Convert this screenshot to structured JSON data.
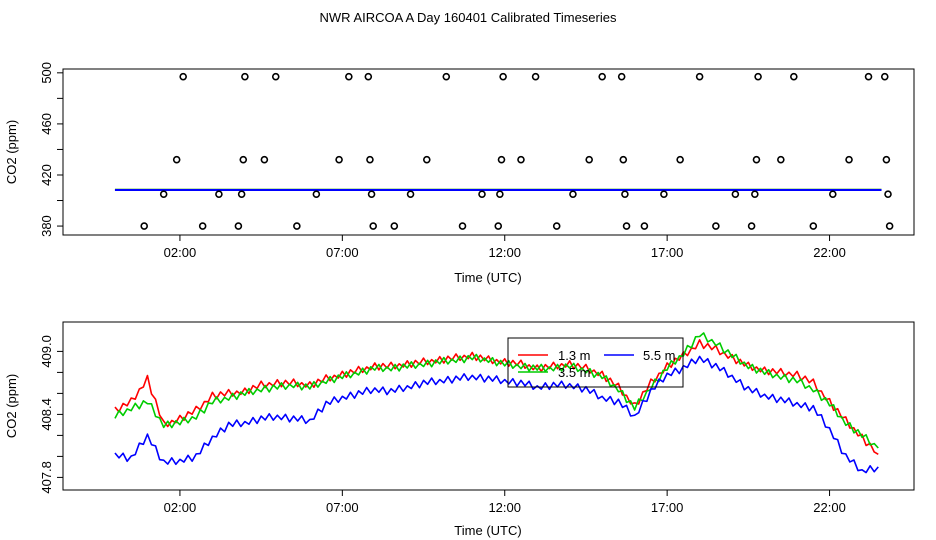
{
  "title": "NWR AIRCOA A  Day 160401  Calibrated Timeseries",
  "chart_data": [
    {
      "type": "scatter",
      "xlabel": "Time (UTC)",
      "ylabel": "CO2 (ppm)",
      "xlim": [
        -1.6,
        24.6
      ],
      "ylim": [
        373,
        503
      ],
      "xticks": [
        2,
        7,
        12,
        17,
        22
      ],
      "xtick_labels": [
        "02:00",
        "07:00",
        "12:00",
        "17:00",
        "22:00"
      ],
      "yticks": [
        380,
        420,
        460,
        500
      ],
      "ytick_labels": [
        "380",
        "420",
        "460",
        "500"
      ],
      "points": {
        "x": [
          0.9,
          1.5,
          1.9,
          2.1,
          2.7,
          3.2,
          3.8,
          3.9,
          3.95,
          4.0,
          4.6,
          4.95,
          5.6,
          6.2,
          6.9,
          7.2,
          7.8,
          7.85,
          7.9,
          7.95,
          8.6,
          9.1,
          9.6,
          10.2,
          10.7,
          11.3,
          11.8,
          11.85,
          11.9,
          11.95,
          12.5,
          12.95,
          13.6,
          14.1,
          14.6,
          15.0,
          15.6,
          15.65,
          15.7,
          15.75,
          16.3,
          16.9,
          17.4,
          18.0,
          18.5,
          19.1,
          19.6,
          19.7,
          19.75,
          19.8,
          20.5,
          20.9,
          21.5,
          22.1,
          22.6,
          23.2,
          23.7,
          23.75,
          23.8,
          23.85
        ],
        "y": [
          380,
          405,
          432,
          497,
          380,
          405,
          380,
          405,
          432,
          497,
          432,
          497,
          380,
          405,
          432,
          497,
          497,
          432,
          405,
          380,
          380,
          405,
          432,
          497,
          380,
          405,
          380,
          405,
          432,
          497,
          432,
          497,
          380,
          405,
          432,
          497,
          497,
          432,
          405,
          380,
          380,
          405,
          432,
          497,
          380,
          405,
          380,
          405,
          432,
          497,
          432,
          497,
          380,
          405,
          432,
          497,
          497,
          432,
          405,
          380
        ]
      },
      "series": [
        {
          "name": "1.3 m",
          "color": "#ff0000",
          "x": [
            0,
            23.6
          ],
          "y": [
            408.3,
            408.3
          ]
        },
        {
          "name": "3.5 m",
          "color": "#00cc00",
          "x": [
            0,
            23.6
          ],
          "y": [
            408.4,
            408.4
          ]
        },
        {
          "name": "5.5 m",
          "color": "#0000ff",
          "x": [
            0,
            23.6
          ],
          "y": [
            408.2,
            408.2
          ]
        }
      ]
    },
    {
      "type": "line",
      "xlabel": "Time (UTC)",
      "ylabel": "CO2 (ppm)",
      "xlim": [
        -1.6,
        24.6
      ],
      "ylim": [
        407.68,
        409.28
      ],
      "xticks": [
        2,
        7,
        12,
        17,
        22
      ],
      "xtick_labels": [
        "02:00",
        "07:00",
        "12:00",
        "17:00",
        "22:00"
      ],
      "yticks": [
        407.8,
        408.4,
        409.0
      ],
      "ytick_labels": [
        "407.8",
        "408.4",
        "409.0"
      ],
      "legend": {
        "placement": "top-center",
        "entries": [
          "1.3 m",
          "3.5 m",
          "5.5 m"
        ]
      },
      "series": [
        {
          "name": "1.3 m",
          "color": "#ff0000",
          "x": [
            0.0,
            0.5,
            1.0,
            1.5,
            2.0,
            2.5,
            3.0,
            3.5,
            4.0,
            4.5,
            5.0,
            5.5,
            6.0,
            6.5,
            7.0,
            7.5,
            8.0,
            8.5,
            9.0,
            9.5,
            10.0,
            10.5,
            11.0,
            11.5,
            12.0,
            12.5,
            13.0,
            13.5,
            14.0,
            14.5,
            15.0,
            15.5,
            16.0,
            16.5,
            17.0,
            17.5,
            18.0,
            18.5,
            19.0,
            19.5,
            20.0,
            20.5,
            21.0,
            21.5,
            22.0,
            22.5,
            23.0,
            23.5
          ],
          "y": [
            408.44,
            408.52,
            408.74,
            408.3,
            408.36,
            408.44,
            408.58,
            408.6,
            408.62,
            408.68,
            408.7,
            408.7,
            408.68,
            408.74,
            408.78,
            408.82,
            408.86,
            408.86,
            408.88,
            408.9,
            408.92,
            408.94,
            408.96,
            408.92,
            408.9,
            408.88,
            408.84,
            408.86,
            408.88,
            408.84,
            408.78,
            408.66,
            408.48,
            408.7,
            408.86,
            408.96,
            409.08,
            409.02,
            408.94,
            408.86,
            408.82,
            408.8,
            408.78,
            408.7,
            408.52,
            408.34,
            408.18,
            408.02
          ]
        },
        {
          "name": "3.5 m",
          "color": "#00cc00",
          "x": [
            0.0,
            0.5,
            1.0,
            1.5,
            2.0,
            2.5,
            3.0,
            3.5,
            4.0,
            4.5,
            5.0,
            5.5,
            6.0,
            6.5,
            7.0,
            7.5,
            8.0,
            8.5,
            9.0,
            9.5,
            10.0,
            10.5,
            11.0,
            11.5,
            12.0,
            12.5,
            13.0,
            13.5,
            14.0,
            14.5,
            15.0,
            15.5,
            16.0,
            16.5,
            17.0,
            17.5,
            18.0,
            18.5,
            19.0,
            19.5,
            20.0,
            20.5,
            21.0,
            21.5,
            22.0,
            22.5,
            23.0,
            23.5
          ],
          "y": [
            408.38,
            408.46,
            408.52,
            408.3,
            408.32,
            408.38,
            408.52,
            408.56,
            408.6,
            408.64,
            408.66,
            408.68,
            408.66,
            408.72,
            408.76,
            408.8,
            408.84,
            408.84,
            408.86,
            408.88,
            408.9,
            408.92,
            408.94,
            408.92,
            408.88,
            408.86,
            408.84,
            408.84,
            408.86,
            408.82,
            408.76,
            408.64,
            408.46,
            408.66,
            408.84,
            408.98,
            409.16,
            409.08,
            408.96,
            408.86,
            408.8,
            408.76,
            408.72,
            408.64,
            408.5,
            408.32,
            408.2,
            408.08
          ]
        },
        {
          "name": "5.5 m",
          "color": "#0000ff",
          "x": [
            0.0,
            0.5,
            1.0,
            1.5,
            2.0,
            2.5,
            3.0,
            3.5,
            4.0,
            4.5,
            5.0,
            5.5,
            6.0,
            6.5,
            7.0,
            7.5,
            8.0,
            8.5,
            9.0,
            9.5,
            10.0,
            10.5,
            11.0,
            11.5,
            12.0,
            12.5,
            13.0,
            13.5,
            14.0,
            14.5,
            15.0,
            15.5,
            16.0,
            16.5,
            17.0,
            17.5,
            18.0,
            18.5,
            19.0,
            19.5,
            20.0,
            20.5,
            21.0,
            21.5,
            22.0,
            22.5,
            23.0,
            23.5
          ],
          "y": [
            408.02,
            407.98,
            408.2,
            407.94,
            407.96,
            408.0,
            408.18,
            408.3,
            408.32,
            408.36,
            408.38,
            408.36,
            408.34,
            408.5,
            408.56,
            408.6,
            408.64,
            408.62,
            408.66,
            408.7,
            408.72,
            408.74,
            408.76,
            408.74,
            408.72,
            408.7,
            408.66,
            408.68,
            408.68,
            408.64,
            408.56,
            408.52,
            408.38,
            408.62,
            408.78,
            408.84,
            408.94,
            408.86,
            408.76,
            408.64,
            408.58,
            408.54,
            408.5,
            408.46,
            408.26,
            408.0,
            407.86,
            407.9
          ]
        }
      ]
    }
  ]
}
